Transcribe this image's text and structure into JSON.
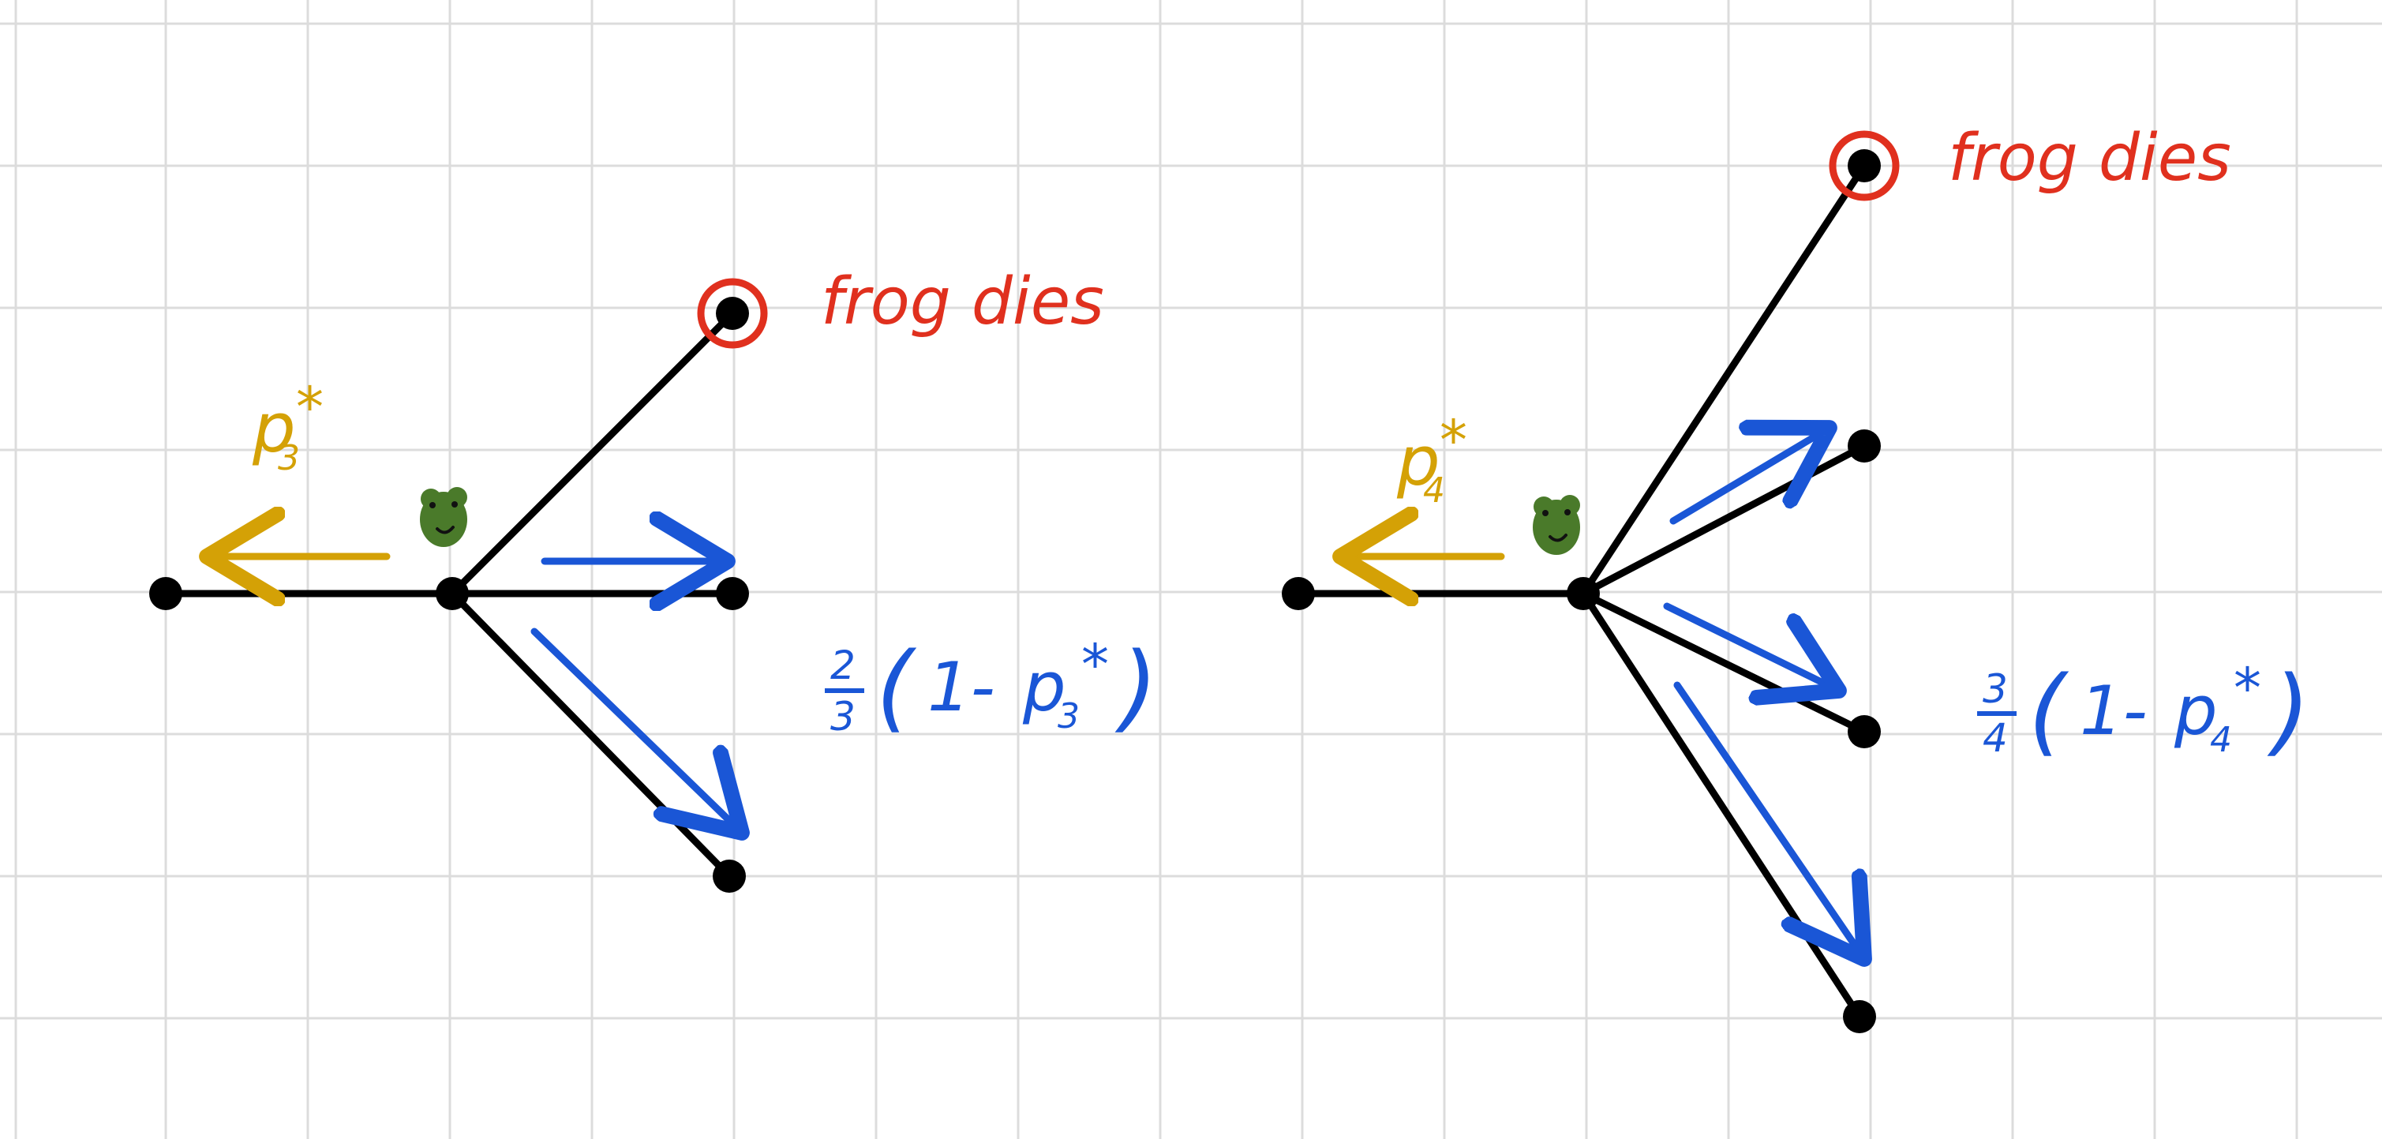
{
  "colors": {
    "grid": "#d9d9d9",
    "edge": "#000000",
    "death": "#e0301e",
    "stay": "#d4a106",
    "move": "#1a56d6",
    "frog_body": "#4a7a2a",
    "frog_dark": "#2e5a16"
  },
  "left": {
    "death_label": "frog dies",
    "stay_label": {
      "base": "p",
      "sub": "3",
      "sup": "*"
    },
    "move_label": {
      "num": "2",
      "den": "3",
      "open": "(",
      "mid": "1-",
      "base": "p",
      "sub": "3",
      "sup": "*",
      "close": ")"
    }
  },
  "right": {
    "death_label": "frog dies",
    "stay_label": {
      "base": "p",
      "sub": "4",
      "sup": "*"
    },
    "move_label": {
      "num": "3",
      "den": "4",
      "open": "(",
      "mid": "1-",
      "base": "p",
      "sub": "4",
      "sup": "*",
      "close": ")"
    }
  },
  "icons": {
    "frog": "frog-icon"
  }
}
